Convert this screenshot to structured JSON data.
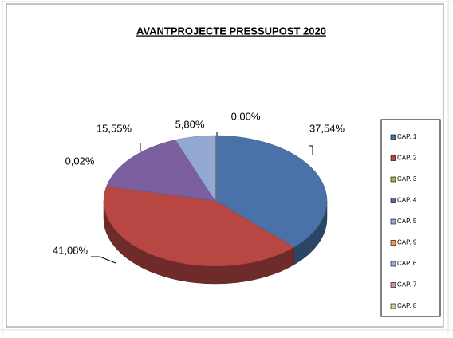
{
  "chart_data": {
    "type": "pie3d",
    "title": "AVANTPROJECTE  PRESSUPOST  2020",
    "categories": [
      "CAP. 1",
      "CAP. 2",
      "CAP. 3",
      "CAP. 4",
      "CAP. 5",
      "CAP. 9",
      "CAP. 6",
      "CAP. 7",
      "CAP. 8"
    ],
    "values": [
      37.54,
      41.08,
      0.02,
      15.55,
      5.8,
      0.0,
      null,
      null,
      null
    ],
    "value_labels": [
      "37,54%",
      "41,08%",
      "0,02%",
      "15,55%",
      "5,80%",
      "0,00%",
      null,
      null,
      null
    ],
    "colors": [
      "#4a72a8",
      "#b84744",
      "#98b954",
      "#7b5f9e",
      "#94a9d2",
      "#f59a4a",
      "#98b4dc",
      "#d9928f",
      "#c4d89b"
    ],
    "legend": "right"
  }
}
